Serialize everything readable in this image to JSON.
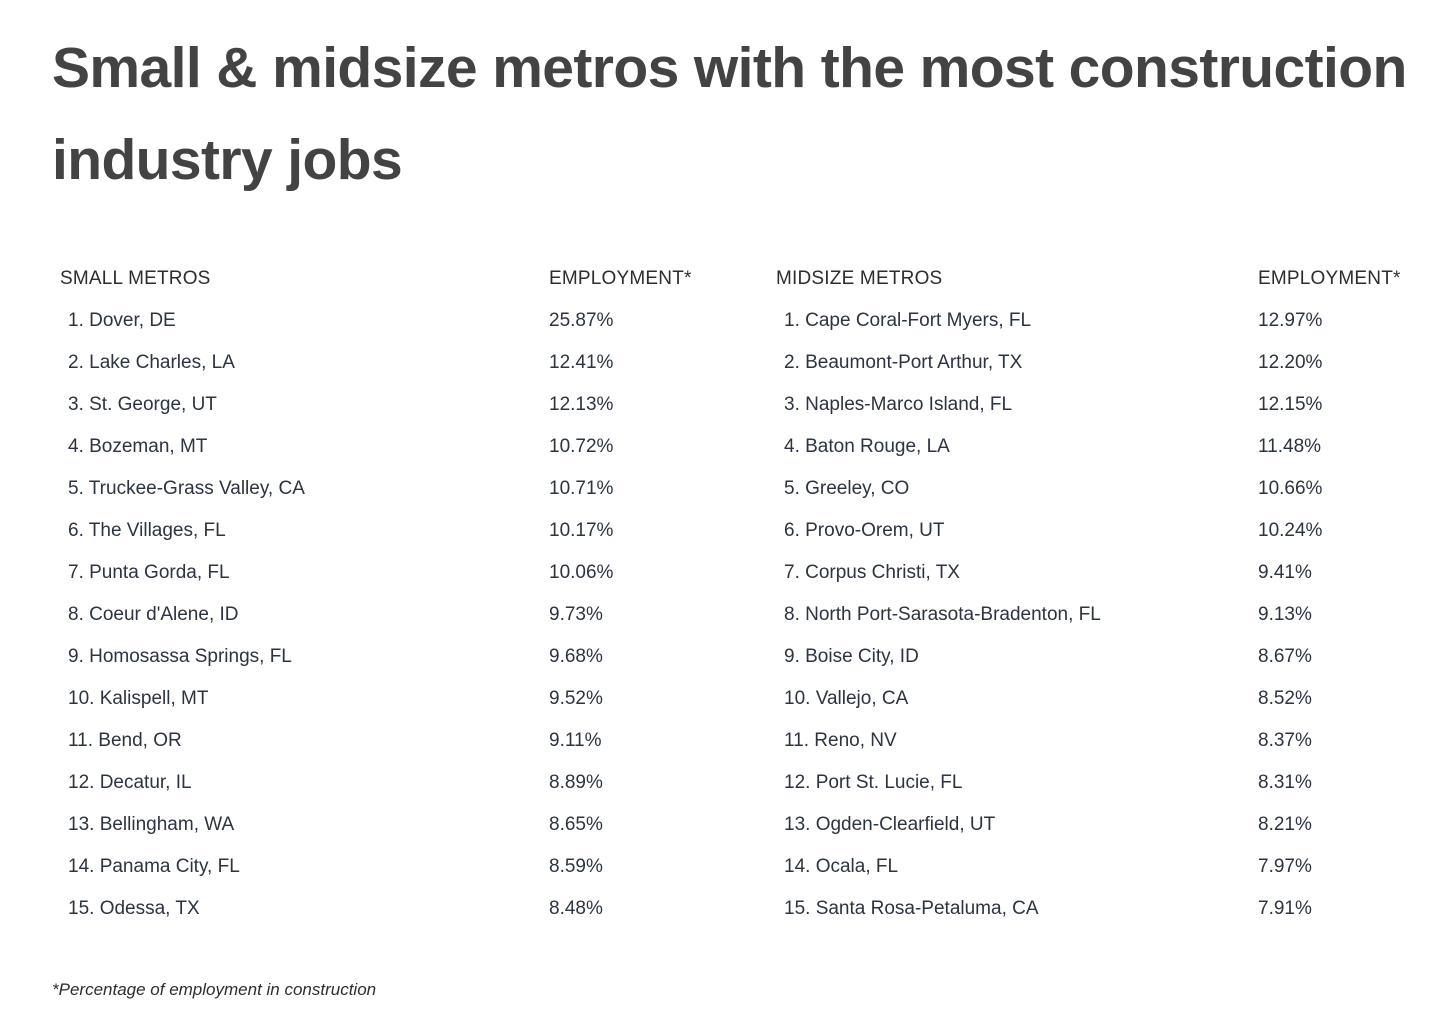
{
  "title": "Small & midsize metros with the most construction industry jobs",
  "small": {
    "header_name": "SMALL METROS",
    "header_value": "EMPLOYMENT*",
    "rows": [
      {
        "name": "1. Dover, DE",
        "value": "25.87%"
      },
      {
        "name": "2. Lake Charles, LA",
        "value": "12.41%"
      },
      {
        "name": "3. St. George, UT",
        "value": "12.13%"
      },
      {
        "name": "4. Bozeman, MT",
        "value": "10.72%"
      },
      {
        "name": "5. Truckee-Grass Valley, CA",
        "value": "10.71%"
      },
      {
        "name": "6. The Villages, FL",
        "value": "10.17%"
      },
      {
        "name": "7. Punta Gorda, FL",
        "value": "10.06%"
      },
      {
        "name": "8. Coeur d'Alene, ID",
        "value": "9.73%"
      },
      {
        "name": "9. Homosassa Springs, FL",
        "value": "9.68%"
      },
      {
        "name": "10. Kalispell, MT",
        "value": "9.52%"
      },
      {
        "name": "11. Bend, OR",
        "value": "9.11%"
      },
      {
        "name": "12. Decatur, IL",
        "value": "8.89%"
      },
      {
        "name": "13. Bellingham, WA",
        "value": "8.65%"
      },
      {
        "name": "14. Panama City, FL",
        "value": "8.59%"
      },
      {
        "name": "15. Odessa, TX",
        "value": "8.48%"
      }
    ]
  },
  "midsize": {
    "header_name": "MIDSIZE METROS",
    "header_value": "EMPLOYMENT*",
    "rows": [
      {
        "name": "1. Cape Coral-Fort Myers, FL",
        "value": "12.97%"
      },
      {
        "name": "2. Beaumont-Port Arthur, TX",
        "value": "12.20%"
      },
      {
        "name": "3. Naples-Marco Island, FL",
        "value": "12.15%"
      },
      {
        "name": "4. Baton Rouge, LA",
        "value": "11.48%"
      },
      {
        "name": "5. Greeley, CO",
        "value": "10.66%"
      },
      {
        "name": "6. Provo-Orem, UT",
        "value": "10.24%"
      },
      {
        "name": "7. Corpus Christi, TX",
        "value": "9.41%"
      },
      {
        "name": "8. North Port-Sarasota-Bradenton, FL",
        "value": "9.13%"
      },
      {
        "name": "9. Boise City, ID",
        "value": "8.67%"
      },
      {
        "name": "10. Vallejo, CA",
        "value": "8.52%"
      },
      {
        "name": "11. Reno, NV",
        "value": "8.37%"
      },
      {
        "name": "12. Port St. Lucie, FL",
        "value": "8.31%"
      },
      {
        "name": "13. Ogden-Clearfield, UT",
        "value": "8.21%"
      },
      {
        "name": "14. Ocala, FL",
        "value": "7.97%"
      },
      {
        "name": "15. Santa Rosa-Petaluma, CA",
        "value": "7.91%"
      }
    ]
  },
  "footnote": "*Percentage of employment in construction"
}
